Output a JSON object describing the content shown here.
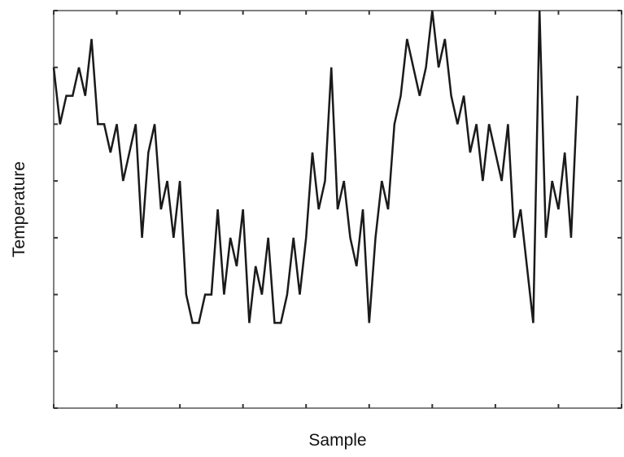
{
  "chart_data": {
    "type": "line",
    "xlabel": "Sample",
    "ylabel": "Temperature",
    "x": [
      0,
      10,
      20,
      30,
      40,
      50,
      60,
      70,
      80,
      90,
      100,
      110,
      120,
      130,
      140,
      150,
      160,
      170,
      180,
      190,
      200,
      210,
      220,
      230,
      240,
      250,
      260,
      270,
      280,
      290,
      300,
      310,
      320,
      330,
      340,
      350,
      360,
      370,
      380,
      390,
      400,
      410,
      420,
      430,
      440,
      450,
      460,
      470,
      480,
      490,
      500,
      510,
      520,
      530,
      540,
      550,
      560,
      570,
      580,
      590,
      600,
      610,
      620,
      630,
      640,
      650,
      660,
      670,
      680,
      690,
      700,
      710,
      720,
      730,
      740,
      750,
      760,
      770,
      780,
      790,
      800,
      810,
      820,
      830
    ],
    "values": [
      6,
      5,
      5.5,
      5.5,
      6,
      5.5,
      6.5,
      5,
      5,
      4.5,
      5,
      4,
      4.5,
      5,
      3,
      4.5,
      5,
      3.5,
      4,
      3,
      4,
      2,
      1.5,
      1.5,
      2,
      2,
      3.5,
      2,
      3,
      2.5,
      3.5,
      1.5,
      2.5,
      2,
      3,
      1.5,
      1.5,
      2,
      3,
      2,
      3,
      4.5,
      3.5,
      4,
      6,
      3.5,
      4,
      3,
      2.5,
      3.5,
      1.5,
      3,
      4,
      3.5,
      5,
      5.5,
      6.5,
      6,
      5.5,
      6,
      7,
      6,
      6.5,
      5.5,
      5,
      5.5,
      4.5,
      5,
      4,
      5,
      4.5,
      4,
      5,
      3,
      3.5,
      2.5,
      1.5,
      7,
      3,
      4,
      3.5,
      4.5,
      3,
      5.5
    ],
    "color": "#1a1a1a",
    "xlim": [
      0,
      900
    ],
    "xticks": [
      0,
      100,
      200,
      300,
      400,
      500,
      600,
      700,
      800,
      900
    ],
    "ylim": [
      0,
      7
    ],
    "yticks": [
      0,
      1,
      2,
      3,
      4,
      5,
      6,
      7
    ]
  }
}
